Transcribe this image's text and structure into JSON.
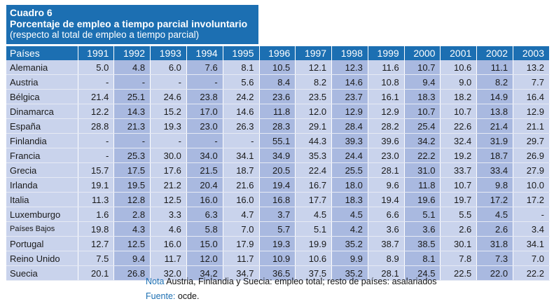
{
  "title": {
    "label": "Cuadro 6",
    "main": "Porcentaje de empleo a tiempo parcial involuntario",
    "sub": "(respecto al total de empleo a tiempo parcial)"
  },
  "table": {
    "country_header": "Países",
    "years": [
      "1991",
      "1992",
      "1993",
      "1994",
      "1995",
      "1996",
      "1997",
      "1998",
      "1999",
      "2000",
      "2001",
      "2002",
      "2003"
    ],
    "rows": [
      {
        "country": "Alemania",
        "values": [
          "5.0",
          "4.8",
          "6.0",
          "7.6",
          "8.1",
          "10.5",
          "12.1",
          "12.3",
          "11.6",
          "10.7",
          "10.6",
          "11.1",
          "13.2"
        ]
      },
      {
        "country": "Austria",
        "values": [
          "-",
          "-",
          "-",
          "-",
          "5.6",
          "8.4",
          "8.2",
          "14.6",
          "10.8",
          "9.4",
          "9.0",
          "8.2",
          "7.7"
        ]
      },
      {
        "country": "Bélgica",
        "values": [
          "21.4",
          "25.1",
          "24.6",
          "23.8",
          "24.2",
          "23.6",
          "23.5",
          "23.7",
          "16.1",
          "18.3",
          "18.2",
          "14.9",
          "16.4"
        ]
      },
      {
        "country": "Dinamarca",
        "values": [
          "12.2",
          "14.3",
          "15.2",
          "17.0",
          "14.6",
          "11.8",
          "12.0",
          "12.9",
          "12.9",
          "10.7",
          "10.7",
          "13.8",
          "12.9"
        ]
      },
      {
        "country": "España",
        "values": [
          "28.8",
          "21.3",
          "19.3",
          "23.0",
          "26.3",
          "28.3",
          "29.1",
          "28.4",
          "28.2",
          "25.4",
          "22.6",
          "21.4",
          "21.1"
        ]
      },
      {
        "country": "Finlandia",
        "values": [
          "-",
          "-",
          "-",
          "-",
          "-",
          "55.1",
          "44.3",
          "39.3",
          "39.6",
          "34.2",
          "32.4",
          "31.9",
          "29.7"
        ]
      },
      {
        "country": "Francia",
        "values": [
          "-",
          "25.3",
          "30.0",
          "34.0",
          "34.1",
          "34.9",
          "35.3",
          "24.4",
          "23.0",
          "22.2",
          "19.2",
          "18.7",
          "26.9"
        ]
      },
      {
        "country": "Grecia",
        "values": [
          "15.7",
          "17.5",
          "17.6",
          "21.5",
          "18.7",
          "20.5",
          "22.4",
          "25.5",
          "28.1",
          "31.0",
          "33.7",
          "33.4",
          "27.9"
        ]
      },
      {
        "country": "Irlanda",
        "values": [
          "19.1",
          "19.5",
          "21.2",
          "20.4",
          "21.6",
          "19.4",
          "16.7",
          "18.0",
          "9.6",
          "11.8",
          "10.7",
          "9.8",
          "10.0"
        ]
      },
      {
        "country": "Italia",
        "values": [
          "11.3",
          "12.8",
          "12.5",
          "16.0",
          "16.0",
          "16.8",
          "17.7",
          "18.3",
          "19.4",
          "19.6",
          "19.7",
          "17.2",
          "17.2"
        ]
      },
      {
        "country": "Luxemburgo",
        "values": [
          "1.6",
          "2.8",
          "3.3",
          "6.3",
          "4.7",
          "3.7",
          "4.5",
          "4.5",
          "6.6",
          "5.1",
          "5.5",
          "4.5",
          "-"
        ]
      },
      {
        "country": "Países Bajos",
        "values": [
          "19.8",
          "4.3",
          "4.6",
          "5.8",
          "7.0",
          "5.7",
          "5.1",
          "4.2",
          "3.6",
          "3.6",
          "2.6",
          "2.6",
          "3.4"
        ],
        "small": true
      },
      {
        "country": "Portugal",
        "values": [
          "12.7",
          "12.5",
          "16.0",
          "15.0",
          "17.9",
          "19.3",
          "19.9",
          "35.2",
          "38.7",
          "38.5",
          "30.1",
          "31.8",
          "34.1"
        ]
      },
      {
        "country": "Reino Unido",
        "values": [
          "7.5",
          "9.4",
          "11.7",
          "12.0",
          "11.7",
          "10.9",
          "10.6",
          "9.9",
          "8.9",
          "8.1",
          "7.8",
          "7.3",
          "7.0"
        ]
      },
      {
        "country": "Suecia",
        "values": [
          "20.1",
          "26.8",
          "32.0",
          "34.2",
          "34.7",
          "36.5",
          "37.5",
          "35.2",
          "28.1",
          "24.5",
          "22.5",
          "22.0",
          "22.2"
        ]
      }
    ]
  },
  "footer": {
    "note_label": "Nota",
    "note_text": " Austria, Finlandia y Suecia: empleo total; resto de países: asalariados",
    "source_label": "Fuente:",
    "source_text": " ocde."
  }
}
